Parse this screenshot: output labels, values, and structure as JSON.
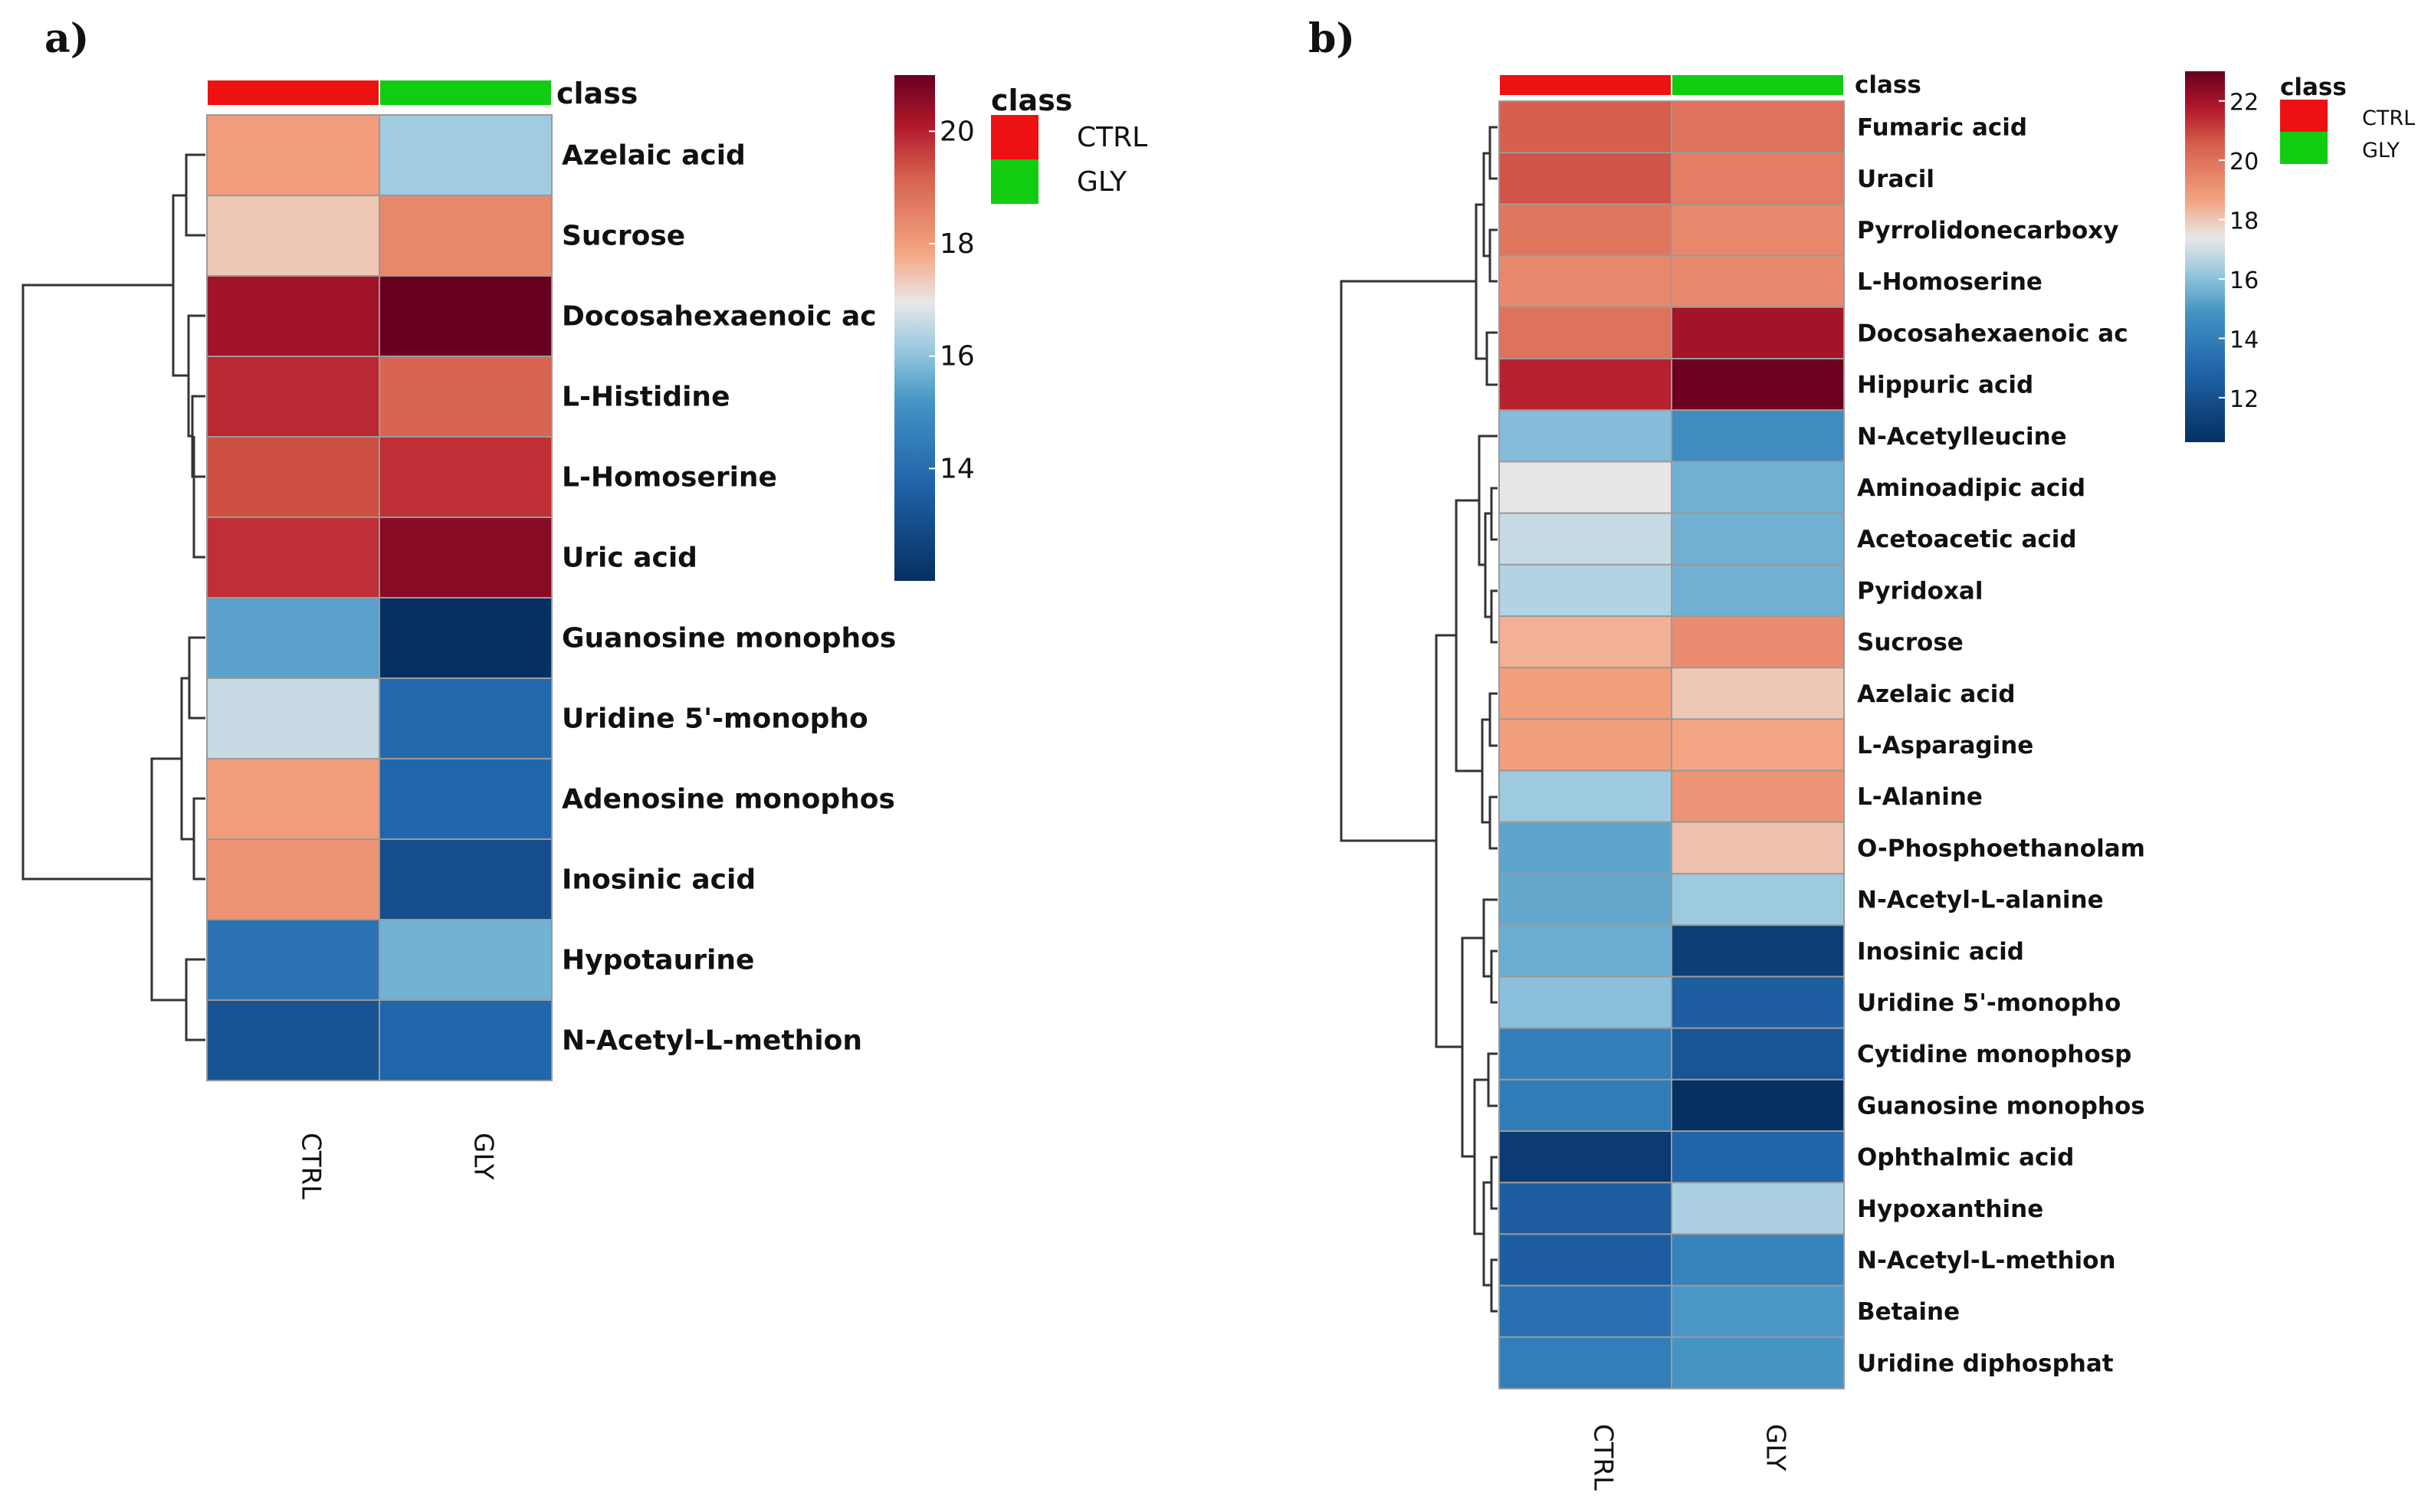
{
  "chart_data": [
    {
      "type": "heatmap",
      "panel_label": "a)",
      "columns": [
        "CTRL",
        "GLY"
      ],
      "column_classes": [
        "CTRL",
        "GLY"
      ],
      "class_track_title": "class",
      "rows": [
        {
          "name": "Azelaic acid",
          "values": [
            18.0,
            16.2
          ]
        },
        {
          "name": "Sucrose",
          "values": [
            17.4,
            18.4
          ]
        },
        {
          "name": "Docosahexaenoic ac",
          "values": [
            20.3,
            21.4
          ]
        },
        {
          "name": "L-Histidine",
          "values": [
            19.9,
            19.1
          ]
        },
        {
          "name": "L-Homoserine",
          "values": [
            19.4,
            19.8
          ]
        },
        {
          "name": "Uric acid",
          "values": [
            19.8,
            20.6
          ]
        },
        {
          "name": "Guanosine monophos",
          "values": [
            15.4,
            12.0
          ]
        },
        {
          "name": "Uridine 5'-monopho",
          "values": [
            16.6,
            13.9
          ]
        },
        {
          "name": "Adenosine monophos",
          "values": [
            18.0,
            13.8
          ]
        },
        {
          "name": "Inosinic acid",
          "values": [
            18.2,
            13.0
          ]
        },
        {
          "name": "Hypotaurine",
          "values": [
            14.2,
            15.7
          ]
        },
        {
          "name": "N-Acetyl-L-methion",
          "values": [
            13.2,
            13.8
          ]
        }
      ],
      "color_scale": {
        "min": 12,
        "max": 21,
        "ticks": [
          14,
          16,
          18,
          20
        ]
      },
      "legend": {
        "title": "class",
        "entries": [
          {
            "label": "CTRL",
            "color": "#ee1111"
          },
          {
            "label": "GLY",
            "color": "#11cc11"
          }
        ]
      }
    },
    {
      "type": "heatmap",
      "panel_label": "b)",
      "columns": [
        "CTRL",
        "GLY"
      ],
      "column_classes": [
        "CTRL",
        "GLY"
      ],
      "class_track_title": "class",
      "rows": [
        {
          "name": "Fumaric acid",
          "values": [
            20.5,
            20.0
          ]
        },
        {
          "name": "Uracil",
          "values": [
            20.7,
            19.7
          ]
        },
        {
          "name": "Pyrrolidonecarboxy",
          "values": [
            19.9,
            19.4
          ]
        },
        {
          "name": "L-Homoserine",
          "values": [
            19.4,
            19.4
          ]
        },
        {
          "name": "Docosahexaenoic ac",
          "values": [
            20.0,
            22.0
          ]
        },
        {
          "name": "Hippuric acid",
          "values": [
            21.6,
            22.9
          ]
        },
        {
          "name": "N-Acetylleucine",
          "values": [
            15.9,
            14.6
          ]
        },
        {
          "name": "Aminoadipic acid",
          "values": [
            17.4,
            15.6
          ]
        },
        {
          "name": "Acetoacetic acid",
          "values": [
            16.9,
            15.6
          ]
        },
        {
          "name": "Pyridoxal",
          "values": [
            16.6,
            15.6
          ]
        },
        {
          "name": "Sucrose",
          "values": [
            18.4,
            19.3
          ]
        },
        {
          "name": "Azelaic acid",
          "values": [
            18.8,
            18.0
          ]
        },
        {
          "name": "L-Asparagine",
          "values": [
            18.8,
            18.6
          ]
        },
        {
          "name": "L-Alanine",
          "values": [
            16.3,
            19.1
          ]
        },
        {
          "name": "O-Phosphoethanolam",
          "values": [
            15.3,
            18.1
          ]
        },
        {
          "name": "N-Acetyl-L-alanine",
          "values": [
            15.4,
            16.3
          ]
        },
        {
          "name": "Inosinic acid",
          "values": [
            15.5,
            11.2
          ]
        },
        {
          "name": "Uridine 5'-monopho",
          "values": [
            16.0,
            12.6
          ]
        },
        {
          "name": "Cytidine monophosp",
          "values": [
            14.0,
            12.2
          ]
        },
        {
          "name": "Guanosine monophos",
          "values": [
            13.9,
            10.5
          ]
        },
        {
          "name": "Ophthalmic acid",
          "values": [
            11.0,
            12.9
          ]
        },
        {
          "name": "Hypoxanthine",
          "values": [
            12.6,
            16.5
          ]
        },
        {
          "name": "N-Acetyl-L-methion",
          "values": [
            12.6,
            14.2
          ]
        },
        {
          "name": "Betaine",
          "values": [
            13.4,
            15.0
          ]
        },
        {
          "name": "Uridine diphosphat",
          "values": [
            14.0,
            14.9
          ]
        }
      ],
      "color_scale": {
        "min": 10.5,
        "max": 23,
        "ticks": [
          12,
          14,
          16,
          18,
          20,
          22
        ]
      },
      "legend": {
        "title": "class",
        "entries": [
          {
            "label": "CTRL",
            "color": "#ee1111"
          },
          {
            "label": "GLY",
            "color": "#11cc11"
          }
        ]
      }
    }
  ]
}
